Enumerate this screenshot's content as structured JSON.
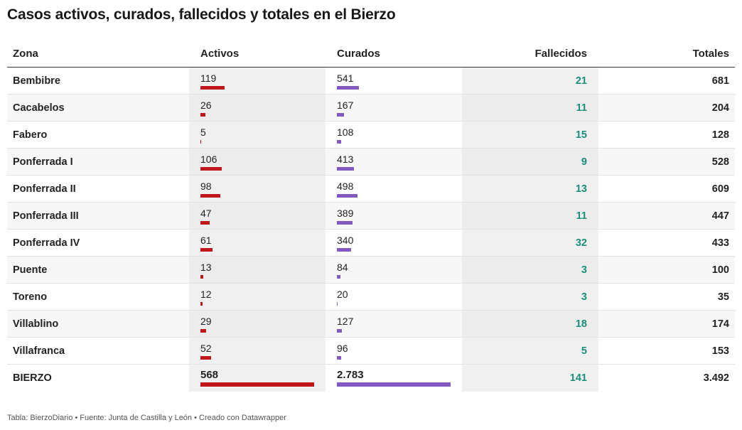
{
  "title": "Casos activos, curados, fallecidos y totales en el Bierzo",
  "columns": {
    "zona": "Zona",
    "activos": "Activos",
    "curados": "Curados",
    "fallecidos": "Fallecidos",
    "totales": "Totales"
  },
  "colors": {
    "activos_bar": "#c0171c",
    "curados_bar": "#8258c1",
    "fallecidos_text": "#1a8f78"
  },
  "chart_data": {
    "type": "table",
    "title": "Casos activos, curados, fallecidos y totales en el Bierzo",
    "rows": [
      {
        "zona": "Bembibre",
        "activos": "119",
        "curados": "541",
        "fallecidos": "21",
        "totales": "681"
      },
      {
        "zona": "Cacabelos",
        "activos": "26",
        "curados": "167",
        "fallecidos": "11",
        "totales": "204"
      },
      {
        "zona": "Fabero",
        "activos": "5",
        "curados": "108",
        "fallecidos": "15",
        "totales": "128"
      },
      {
        "zona": "Ponferrada I",
        "activos": "106",
        "curados": "413",
        "fallecidos": "9",
        "totales": "528"
      },
      {
        "zona": "Ponferrada II",
        "activos": "98",
        "curados": "498",
        "fallecidos": "13",
        "totales": "609"
      },
      {
        "zona": "Ponferrada III",
        "activos": "47",
        "curados": "389",
        "fallecidos": "11",
        "totales": "447"
      },
      {
        "zona": "Ponferrada IV",
        "activos": "61",
        "curados": "340",
        "fallecidos": "32",
        "totales": "433"
      },
      {
        "zona": "Puente",
        "activos": "13",
        "curados": "84",
        "fallecidos": "3",
        "totales": "100"
      },
      {
        "zona": "Toreno",
        "activos": "12",
        "curados": "20",
        "fallecidos": "3",
        "totales": "35"
      },
      {
        "zona": "Villablino",
        "activos": "29",
        "curados": "127",
        "fallecidos": "18",
        "totales": "174"
      },
      {
        "zona": "Villafranca",
        "activos": "52",
        "curados": "96",
        "fallecidos": "5",
        "totales": "153"
      }
    ],
    "total_row": {
      "zona": "BIERZO",
      "activos": "568",
      "curados": "2.783",
      "fallecidos": "141",
      "totales": "3.492"
    },
    "bar_values": {
      "activos": [
        119,
        26,
        5,
        106,
        98,
        47,
        61,
        13,
        12,
        29,
        52
      ],
      "curados": [
        541,
        167,
        108,
        413,
        498,
        389,
        340,
        84,
        20,
        127,
        96
      ],
      "activos_total": 568,
      "curados_total": 2783
    }
  },
  "footer": "Tabla: BierzoDiario • Fuente: Junta de Castilla y León • Creado con Datawrapper"
}
